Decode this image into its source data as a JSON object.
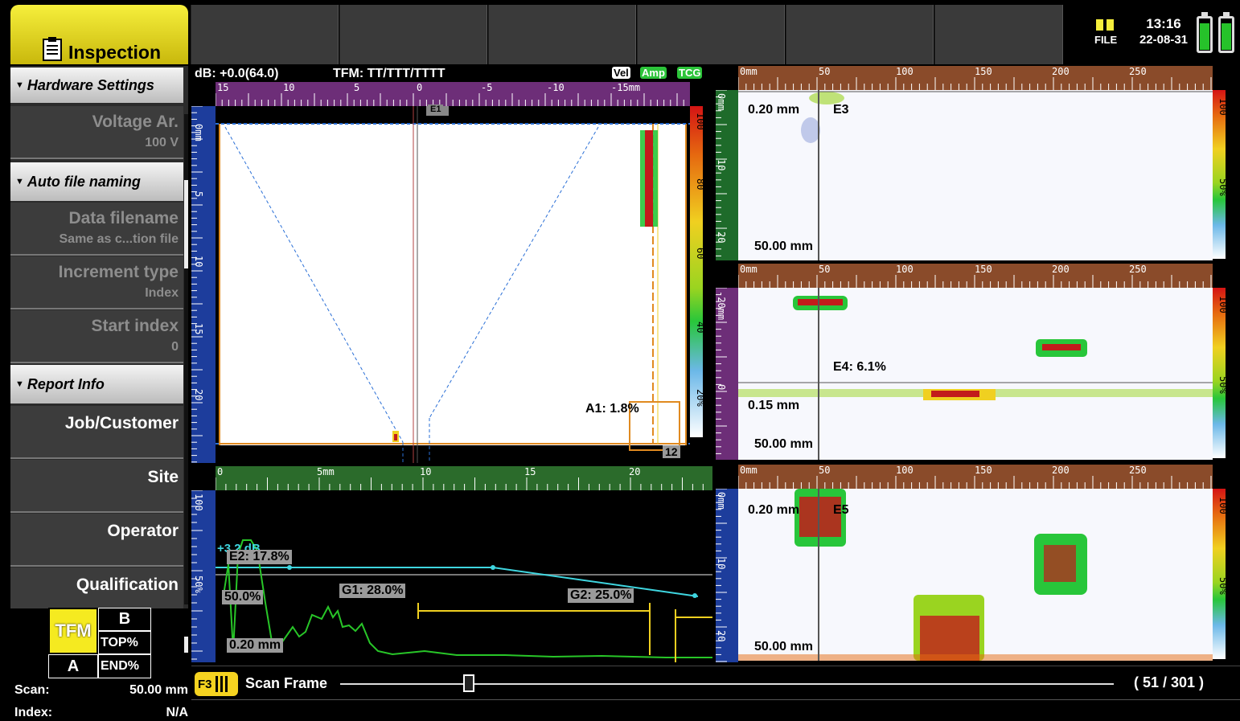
{
  "app": {
    "tab_label": "Inspection",
    "file_label": "FILE",
    "time": "13:16",
    "date": "22-08-31"
  },
  "menu": {
    "hardware_settings": "Hardware Settings",
    "voltage_label": "Voltage Ar.",
    "voltage_value": "100 V",
    "auto_file_naming": "Auto file naming",
    "data_filename_label": "Data filename",
    "data_filename_value": "Same as c...tion file",
    "increment_type_label": "Increment type",
    "increment_type_value": "Index",
    "start_index_label": "Start index",
    "start_index_value": "0",
    "report_info": "Report Info",
    "job_customer": "Job/Customer",
    "site": "Site",
    "operator": "Operator",
    "qualification": "Qualification"
  },
  "mode_grid": {
    "tfm": "TFM",
    "b": "B",
    "top": "TOP%",
    "a": "A",
    "end": "END%"
  },
  "readouts": {
    "scan_label": "Scan:",
    "scan_value": "50.00 mm",
    "index_label": "Index:",
    "index_value": "N/A"
  },
  "tfm_view": {
    "db": "dB: +0.0(64.0)",
    "tfm_mode": "TFM: TT/TTT/TTTT",
    "badges": [
      "Vel",
      "Amp",
      "TCG"
    ],
    "top_ticks": [
      "15",
      "10",
      "5",
      "0",
      "-5",
      "-10",
      "-15mm"
    ],
    "side_ticks": [
      "0mm",
      "5",
      "10",
      "15",
      "20"
    ],
    "cbar_ticks": [
      "100",
      "80",
      "60",
      "40",
      "20%"
    ],
    "cursor_tag": "E1",
    "gate_label": "A1: 1.8%",
    "gate_corner": "12"
  },
  "ascan_view": {
    "top_ticks": [
      "0",
      "5mm",
      "10",
      "15",
      "20"
    ],
    "side_ticks": [
      "100",
      "50%"
    ],
    "gain": "+3.2 dB",
    "e2": "E2: 17.8%",
    "level": "50.0%",
    "g1": "G1: 28.0%",
    "g2": "G2: 25.0%",
    "depth": "0.20 mm"
  },
  "cscan_top": {
    "ticks": [
      "0mm",
      "50",
      "100",
      "150",
      "200",
      "250"
    ],
    "side_ticks": [
      "0mm",
      "10",
      "20"
    ],
    "cbar_ticks": [
      "100",
      "50%"
    ],
    "depth": "0.20 mm",
    "tag": "E3",
    "pos": "50.00 mm"
  },
  "cscan_mid": {
    "ticks": [
      "0mm",
      "50",
      "100",
      "150",
      "200",
      "250"
    ],
    "side_ticks": [
      "-20mm",
      "0"
    ],
    "cbar_ticks": [
      "100",
      "50%"
    ],
    "tag": "E4: 6.1%",
    "depth": "0.15 mm",
    "pos": "50.00 mm"
  },
  "cscan_bot": {
    "ticks": [
      "0mm",
      "50",
      "100",
      "150",
      "200",
      "250"
    ],
    "side_ticks": [
      "0mm",
      "10",
      "20"
    ],
    "cbar_ticks": [
      "100",
      "50%"
    ],
    "depth": "0.20 mm",
    "tag": "E5",
    "pos": "50.00 mm"
  },
  "bottom": {
    "f3": "F3",
    "scan_frame": "Scan Frame",
    "frame_count": "( 51 / 301 )",
    "frame_current": 51,
    "frame_total": 301
  },
  "colors": {
    "accent_yellow": "#f5ea20",
    "cyan": "#3fd6e0",
    "ascan_green": "#28c628"
  }
}
